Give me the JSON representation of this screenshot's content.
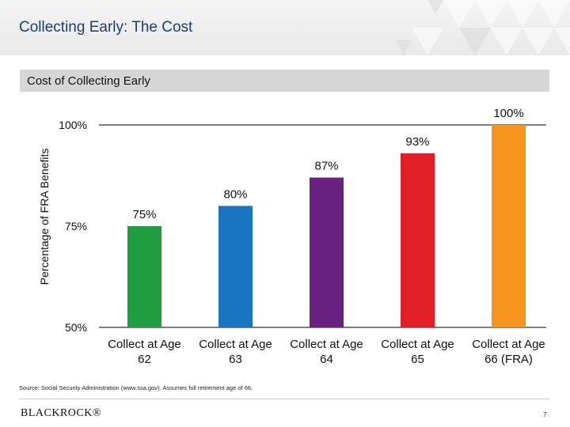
{
  "header": {
    "title": "Collecting Early: The Cost"
  },
  "subtitle": "Cost of Collecting Early",
  "chart_data": {
    "type": "bar",
    "title": "Cost of Collecting Early",
    "ylabel": "Percentage of FRA Benefits",
    "xlabel": "",
    "ylim": [
      50,
      100
    ],
    "yticks": [
      "50%",
      "75%",
      "100%"
    ],
    "ytick_values": [
      50,
      75,
      100
    ],
    "categories": [
      [
        "Collect at Age",
        "62"
      ],
      [
        "Collect at Age",
        "63"
      ],
      [
        "Collect at Age",
        "64"
      ],
      [
        "Collect at Age",
        "65"
      ],
      [
        "Collect at Age",
        "66 (FRA)"
      ]
    ],
    "values": [
      75,
      80,
      87,
      93,
      100
    ],
    "data_labels": [
      "75%",
      "80%",
      "87%",
      "93%",
      "100%"
    ],
    "colors": [
      "#1e9e3e",
      "#1a75c1",
      "#6a2080",
      "#e02026",
      "#f7941d"
    ],
    "grid": false,
    "legend": "none"
  },
  "footer": {
    "source": "Source: Social Security Administration (www.ssa.gov). Assumes full retirement age of 66.",
    "logo": "BLACKROCK®",
    "page_number": "7"
  }
}
